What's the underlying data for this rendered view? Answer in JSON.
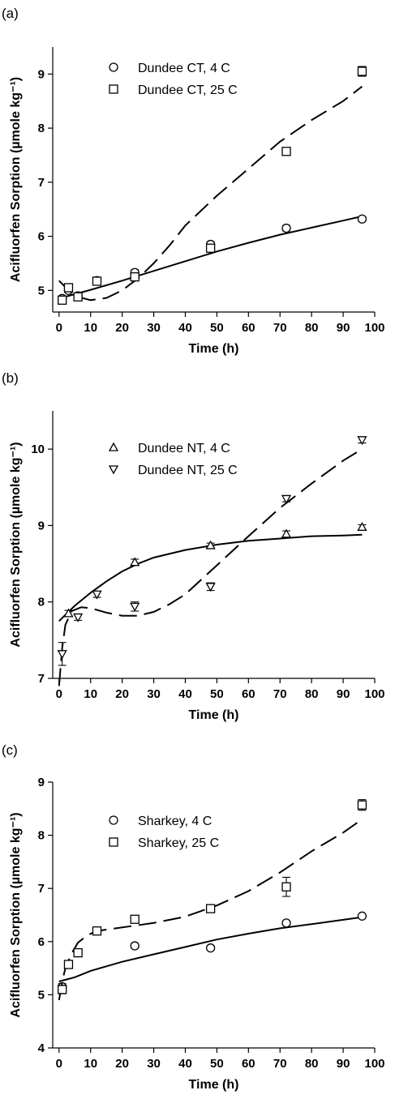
{
  "chart_data": [
    {
      "type": "scatter",
      "panel_label": "(a)",
      "xlabel": "Time (h)",
      "ylabel": "Acifluorfen Sorption (µmole kg⁻¹)",
      "xlim": [
        -2,
        100
      ],
      "ylim": [
        4.6,
        9.5
      ],
      "xticks": [
        0,
        10,
        20,
        30,
        40,
        50,
        60,
        70,
        80,
        90,
        100
      ],
      "yticks": [
        5,
        6,
        7,
        8,
        9
      ],
      "legend_position": "top-left",
      "series": [
        {
          "name": "Dundee CT, 4 C",
          "marker": "circle",
          "points": [
            {
              "x": 1,
              "y": 4.85,
              "err": 0.04
            },
            {
              "x": 3,
              "y": 5.0,
              "err": 0.04
            },
            {
              "x": 6,
              "y": 4.9,
              "err": 0.03
            },
            {
              "x": 12,
              "y": 5.18,
              "err": 0.05
            },
            {
              "x": 24,
              "y": 5.33,
              "err": 0.05
            },
            {
              "x": 48,
              "y": 5.85,
              "err": 0.05
            },
            {
              "x": 72,
              "y": 6.15,
              "err": 0.05
            },
            {
              "x": 96,
              "y": 6.32,
              "err": 0.04
            }
          ],
          "fit": [
            [
              0,
              4.85
            ],
            [
              5,
              4.93
            ],
            [
              10,
              5.01
            ],
            [
              20,
              5.18
            ],
            [
              30,
              5.36
            ],
            [
              40,
              5.54
            ],
            [
              50,
              5.72
            ],
            [
              60,
              5.88
            ],
            [
              70,
              6.03
            ],
            [
              80,
              6.16
            ],
            [
              90,
              6.29
            ],
            [
              96,
              6.37
            ]
          ],
          "fit_style": "solid"
        },
        {
          "name": "Dundee CT, 25 C",
          "marker": "square",
          "points": [
            {
              "x": 1,
              "y": 4.82,
              "err": 0.04
            },
            {
              "x": 3,
              "y": 5.05,
              "err": 0.05
            },
            {
              "x": 6,
              "y": 4.88,
              "err": 0.04
            },
            {
              "x": 12,
              "y": 5.17,
              "err": 0.07
            },
            {
              "x": 24,
              "y": 5.25,
              "err": 0.06
            },
            {
              "x": 48,
              "y": 5.78,
              "err": 0.07
            },
            {
              "x": 72,
              "y": 7.57,
              "err": 0.05
            },
            {
              "x": 96,
              "y": 9.05,
              "err": 0.09
            }
          ],
          "fit": [
            [
              0,
              5.18
            ],
            [
              3,
              5.0
            ],
            [
              6,
              4.88
            ],
            [
              10,
              4.82
            ],
            [
              15,
              4.86
            ],
            [
              20,
              5.0
            ],
            [
              25,
              5.22
            ],
            [
              30,
              5.5
            ],
            [
              35,
              5.83
            ],
            [
              40,
              6.2
            ],
            [
              50,
              6.75
            ],
            [
              60,
              7.25
            ],
            [
              70,
              7.75
            ],
            [
              80,
              8.15
            ],
            [
              90,
              8.5
            ],
            [
              96,
              8.77
            ]
          ],
          "fit_style": "dashed"
        }
      ]
    },
    {
      "type": "scatter",
      "panel_label": "(b)",
      "xlabel": "Time (h)",
      "ylabel": "Acifluorfen Sorption (µmole kg⁻¹)",
      "xlim": [
        -2,
        100
      ],
      "ylim": [
        7.0,
        10.5
      ],
      "xticks": [
        0,
        10,
        20,
        30,
        40,
        50,
        60,
        70,
        80,
        90,
        100
      ],
      "yticks": [
        7,
        8,
        9,
        10
      ],
      "legend_position": "top-left",
      "series": [
        {
          "name": "Dundee NT, 4 C",
          "marker": "triangle-up",
          "points": [
            {
              "x": 3,
              "y": 7.85,
              "err": 0.04
            },
            {
              "x": 24,
              "y": 8.52,
              "err": 0.04
            },
            {
              "x": 48,
              "y": 8.74,
              "err": 0.03
            },
            {
              "x": 72,
              "y": 8.89,
              "err": 0.04
            },
            {
              "x": 96,
              "y": 8.98,
              "err": 0.03
            }
          ],
          "fit": [
            [
              0,
              7.75
            ],
            [
              5,
              7.95
            ],
            [
              10,
              8.12
            ],
            [
              15,
              8.27
            ],
            [
              20,
              8.4
            ],
            [
              25,
              8.5
            ],
            [
              30,
              8.58
            ],
            [
              40,
              8.68
            ],
            [
              50,
              8.75
            ],
            [
              60,
              8.8
            ],
            [
              70,
              8.83
            ],
            [
              80,
              8.86
            ],
            [
              90,
              8.87
            ],
            [
              96,
              8.88
            ]
          ],
          "fit_style": "solid"
        },
        {
          "name": "Dundee NT, 25 C",
          "marker": "triangle-down",
          "points": [
            {
              "x": 1,
              "y": 7.32,
              "err": 0.15
            },
            {
              "x": 6,
              "y": 7.8,
              "err": 0.04
            },
            {
              "x": 12,
              "y": 8.1,
              "err": 0.04
            },
            {
              "x": 24,
              "y": 7.94,
              "err": 0.06
            },
            {
              "x": 48,
              "y": 8.2,
              "err": 0.05
            },
            {
              "x": 72,
              "y": 9.35,
              "err": 0.04
            },
            {
              "x": 96,
              "y": 10.12,
              "err": 0.04
            }
          ],
          "fit": [
            [
              0,
              6.9
            ],
            [
              1,
              7.4
            ],
            [
              2,
              7.7
            ],
            [
              4,
              7.88
            ],
            [
              7,
              7.93
            ],
            [
              10,
              7.92
            ],
            [
              15,
              7.86
            ],
            [
              20,
              7.82
            ],
            [
              25,
              7.82
            ],
            [
              30,
              7.87
            ],
            [
              35,
              7.97
            ],
            [
              40,
              8.1
            ],
            [
              50,
              8.48
            ],
            [
              60,
              8.86
            ],
            [
              70,
              9.23
            ],
            [
              80,
              9.55
            ],
            [
              90,
              9.85
            ],
            [
              96,
              10.0
            ]
          ],
          "fit_style": "dashed"
        }
      ]
    },
    {
      "type": "scatter",
      "panel_label": "(c)",
      "xlabel": "Time (h)",
      "ylabel": "Acifluorfen Sorption (µmole kg⁻¹)",
      "xlim": [
        -2,
        100
      ],
      "ylim": [
        4.0,
        9.0
      ],
      "xticks": [
        0,
        10,
        20,
        30,
        40,
        50,
        60,
        70,
        80,
        90,
        100
      ],
      "yticks": [
        4,
        5,
        6,
        7,
        8,
        9
      ],
      "legend_position": "top-left",
      "series": [
        {
          "name": "Sharkey, 4 C",
          "marker": "circle",
          "points": [
            {
              "x": 1,
              "y": 5.15,
              "err": 0.06
            },
            {
              "x": 24,
              "y": 5.92,
              "err": 0.04
            },
            {
              "x": 48,
              "y": 5.88,
              "err": 0.04
            },
            {
              "x": 72,
              "y": 6.35,
              "err": 0.04
            },
            {
              "x": 96,
              "y": 6.48,
              "err": 0.03
            }
          ],
          "fit": [
            [
              0,
              5.25
            ],
            [
              5,
              5.33
            ],
            [
              10,
              5.45
            ],
            [
              20,
              5.62
            ],
            [
              30,
              5.76
            ],
            [
              40,
              5.9
            ],
            [
              50,
              6.04
            ],
            [
              60,
              6.15
            ],
            [
              70,
              6.25
            ],
            [
              80,
              6.33
            ],
            [
              90,
              6.41
            ],
            [
              96,
              6.46
            ]
          ],
          "fit_style": "solid"
        },
        {
          "name": "Sharkey, 25 C",
          "marker": "square",
          "points": [
            {
              "x": 1,
              "y": 5.1,
              "err": 0.08
            },
            {
              "x": 3,
              "y": 5.57,
              "err": 0.05
            },
            {
              "x": 6,
              "y": 5.79,
              "err": 0.05
            },
            {
              "x": 12,
              "y": 6.2,
              "err": 0.04
            },
            {
              "x": 24,
              "y": 6.42,
              "err": 0.05
            },
            {
              "x": 48,
              "y": 6.62,
              "err": 0.04
            },
            {
              "x": 72,
              "y": 7.03,
              "err": 0.18
            },
            {
              "x": 96,
              "y": 8.57,
              "err": 0.1
            }
          ],
          "fit": [
            [
              0,
              4.9
            ],
            [
              1,
              5.25
            ],
            [
              2,
              5.5
            ],
            [
              4,
              5.78
            ],
            [
              6,
              5.98
            ],
            [
              9,
              6.12
            ],
            [
              12,
              6.2
            ],
            [
              18,
              6.25
            ],
            [
              24,
              6.3
            ],
            [
              30,
              6.35
            ],
            [
              40,
              6.47
            ],
            [
              50,
              6.68
            ],
            [
              60,
              6.95
            ],
            [
              70,
              7.3
            ],
            [
              80,
              7.7
            ],
            [
              90,
              8.05
            ],
            [
              96,
              8.3
            ]
          ],
          "fit_style": "dashed"
        }
      ]
    }
  ]
}
